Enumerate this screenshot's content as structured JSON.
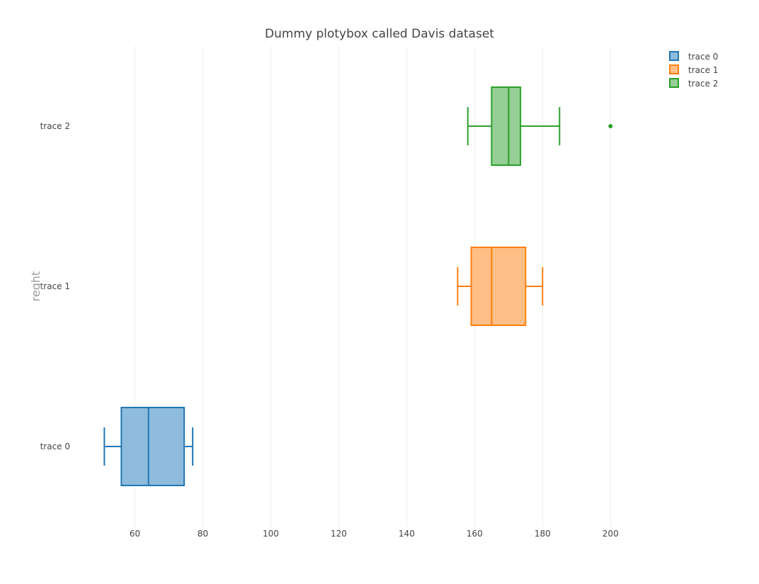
{
  "chart_data": {
    "type": "box",
    "orientation": "horizontal",
    "title": "Dummy plotybox called Davis dataset",
    "xlabel": "",
    "ylabel": "reght",
    "xlim": [
      40.5,
      223.5
    ],
    "xticks": [
      60,
      80,
      100,
      120,
      140,
      160,
      180,
      200
    ],
    "xtick_labels": [
      "60",
      "80",
      "100",
      "120",
      "140",
      "160",
      "180",
      "200"
    ],
    "categories": [
      "trace 2",
      "trace 1",
      "trace 0"
    ],
    "grid": true,
    "legend_position": "top-right",
    "series": [
      {
        "name": "trace 0",
        "color": "#1f77b4",
        "fill": "#8fbbdc",
        "whisker_low": 51,
        "q1": 56,
        "median": 64,
        "q3": 74.5,
        "whisker_high": 77,
        "outliers": []
      },
      {
        "name": "trace 1",
        "color": "#ff7f0e",
        "fill": "#ffbf86",
        "whisker_low": 155,
        "q1": 159,
        "median": 165,
        "q3": 175,
        "whisker_high": 180,
        "outliers": []
      },
      {
        "name": "trace 2",
        "color": "#2ca02c",
        "fill": "#95cf95",
        "whisker_low": 158,
        "q1": 165,
        "median": 170,
        "q3": 173.5,
        "whisker_high": 185,
        "outliers": [
          200
        ]
      }
    ]
  }
}
